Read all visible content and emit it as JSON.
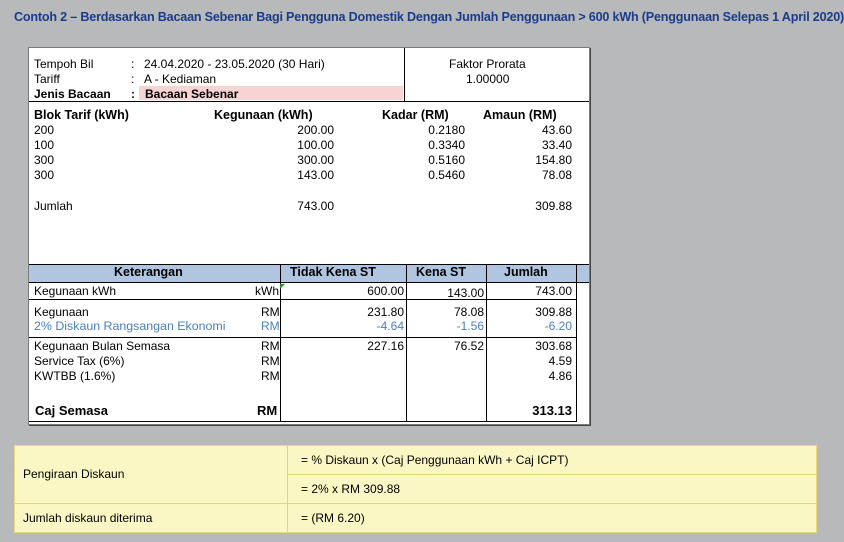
{
  "title": "Contoh 2 – Berdasarkan Bacaan Sebenar Bagi Pengguna Domestik Dengan Jumlah Penggunaan > 600 kWh (Penggunaan Selepas 1 April 2020)",
  "header": {
    "tempoh_label": "Tempoh Bil",
    "tempoh_value": "24.04.2020 - 23.05.2020 (30 Hari)",
    "tariff_label": "Tariff",
    "tariff_value": "A - Kediaman",
    "jenis_label": "Jenis Bacaan",
    "jenis_value": "Bacaan Sebenar",
    "colon": ":",
    "faktor_label": "Faktor Prorata",
    "faktor_value": "1.00000"
  },
  "blok": {
    "headers": {
      "blok": "Blok Tarif (kWh)",
      "kegunaan": "Kegunaan (kWh)",
      "kadar": "Kadar (RM)",
      "amaun": "Amaun (RM)"
    },
    "rows": [
      {
        "blok": "200",
        "kegunaan": "200.00",
        "kadar": "0.2180",
        "amaun": "43.60"
      },
      {
        "blok": "100",
        "kegunaan": "100.00",
        "kadar": "0.3340",
        "amaun": "33.40"
      },
      {
        "blok": "300",
        "kegunaan": "300.00",
        "kadar": "0.5160",
        "amaun": "154.80"
      },
      {
        "blok": "300",
        "kegunaan": "143.00",
        "kadar": "0.5460",
        "amaun": "78.08"
      }
    ],
    "jumlah_label": "Jumlah",
    "jumlah_kegunaan": "743.00",
    "jumlah_amaun": "309.88"
  },
  "table": {
    "headers": {
      "keterangan": "Keterangan",
      "tidak_kena": "Tidak Kena ST",
      "kena": "Kena ST",
      "jumlah": "Jumlah"
    },
    "kwh": {
      "label": "Kegunaan kWh",
      "unit": "kWh",
      "tidak_kena": "600.00",
      "kena": "143.00",
      "jumlah": "743.00"
    },
    "kegunaan": {
      "label": "Kegunaan",
      "unit": "RM",
      "tidak_kena": "231.80",
      "kena": "78.08",
      "jumlah": "309.88"
    },
    "diskaun": {
      "label": "2% Diskaun Rangsangan Ekonomi",
      "unit": "RM",
      "tidak_kena": "-4.64",
      "kena": "-1.56",
      "jumlah": "-6.20"
    },
    "bulan": {
      "label": "Kegunaan Bulan Semasa",
      "unit": "RM",
      "tidak_kena": "227.16",
      "kena": "76.52",
      "jumlah": "303.68"
    },
    "service": {
      "label": "Service Tax (6%)",
      "unit": "RM",
      "jumlah": "4.59"
    },
    "kwtbb": {
      "label": "KWTBB (1.6%)",
      "unit": "RM",
      "jumlah": "4.86"
    },
    "caj": {
      "label": "Caj Semasa",
      "unit": "RM",
      "jumlah": "313.13"
    }
  },
  "note": {
    "pengiraan_label": "Pengiraan Diskaun",
    "formula1": "= % Diskaun x (Caj Penggunaan kWh + Caj ICPT)",
    "formula2": "= 2% x RM 309.88",
    "jumlah_label": "Jumlah diskaun diterima",
    "jumlah_value": "= (RM 6.20)"
  },
  "colors": {
    "title": "#1a3c8c",
    "header_bg": "#b0c5e0",
    "pink": "#f7d3d3",
    "blue_text": "#4a7fc0",
    "note_bg": "#fbf7c4"
  }
}
